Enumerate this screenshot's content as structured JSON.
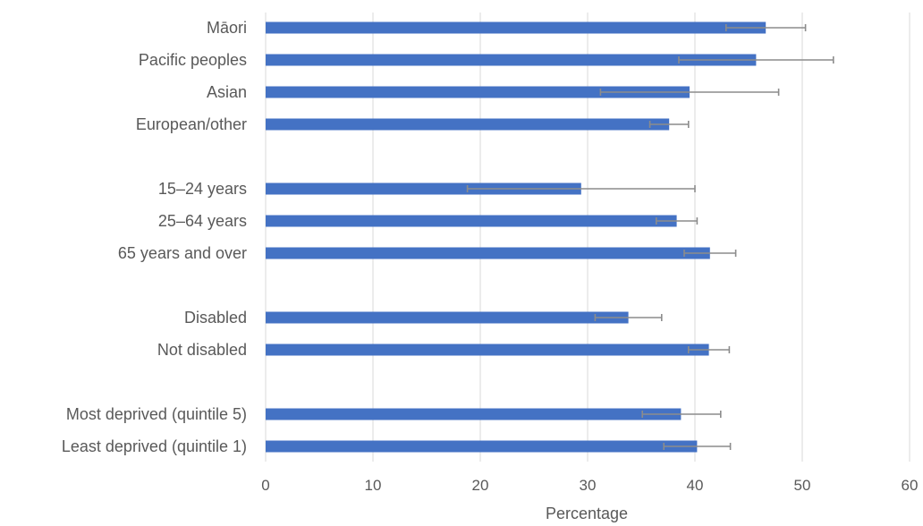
{
  "chart_data": {
    "type": "bar",
    "orientation": "horizontal",
    "title": "",
    "xlabel": "Percentage",
    "ylabel": "",
    "xlim": [
      0,
      60
    ],
    "xticks": [
      0,
      10,
      20,
      30,
      40,
      50,
      60
    ],
    "grid": true,
    "legend": "none",
    "colors": {
      "bar": "#4472c4",
      "error_bar": "#8c8c8c",
      "grid": "#d9d9d9",
      "text": "#595959"
    },
    "groups": [
      {
        "categories": [
          {
            "label": "Māori",
            "value": 46.6,
            "err_low": 42.9,
            "err_high": 50.3
          },
          {
            "label": "Pacific peoples",
            "value": 45.7,
            "err_low": 38.5,
            "err_high": 52.9
          },
          {
            "label": "Asian",
            "value": 39.5,
            "err_low": 31.2,
            "err_high": 47.8
          },
          {
            "label": "European/other",
            "value": 37.6,
            "err_low": 35.8,
            "err_high": 39.4
          }
        ]
      },
      {
        "categories": [
          {
            "label": "15–24 years",
            "value": 29.4,
            "err_low": 18.8,
            "err_high": 40.0
          },
          {
            "label": "25–64 years",
            "value": 38.3,
            "err_low": 36.4,
            "err_high": 40.2
          },
          {
            "label": "65 years and over",
            "value": 41.4,
            "err_low": 39.0,
            "err_high": 43.8
          }
        ]
      },
      {
        "categories": [
          {
            "label": "Disabled",
            "value": 33.8,
            "err_low": 30.7,
            "err_high": 36.9
          },
          {
            "label": "Not disabled",
            "value": 41.3,
            "err_low": 39.4,
            "err_high": 43.2
          }
        ]
      },
      {
        "categories": [
          {
            "label": "Most deprived (quintile 5)",
            "value": 38.7,
            "err_low": 35.1,
            "err_high": 42.4
          },
          {
            "label": "Least deprived (quintile 1)",
            "value": 40.2,
            "err_low": 37.1,
            "err_high": 43.3
          }
        ]
      }
    ]
  }
}
